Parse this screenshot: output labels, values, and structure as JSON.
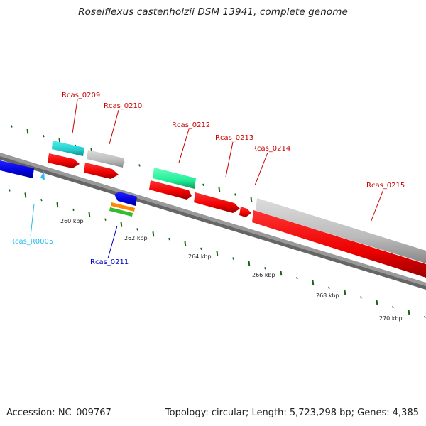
{
  "map": {
    "title": "Roseiflexus castenholzii DSM 13941, complete genome",
    "accession_text": "Accession: NC_009767",
    "topology_text": "Topology: circular; Length: 5,723,298 bp; Genes: 4,385"
  },
  "scale": {
    "ticks": [
      {
        "label": "260 kbp"
      },
      {
        "label": "262 kbp"
      },
      {
        "label": "264 kbp"
      },
      {
        "label": "266 kbp"
      },
      {
        "label": "268 kbp"
      },
      {
        "label": "270 kbp"
      }
    ]
  },
  "features": [
    {
      "id": "Rcas_R0005",
      "label": "Rcas_R0005",
      "color": "#22bbee"
    },
    {
      "id": "Rcas_0209",
      "label": "Rcas_0209",
      "color": "#cc0000"
    },
    {
      "id": "Rcas_0210",
      "label": "Rcas_0210",
      "color": "#cc0000"
    },
    {
      "id": "Rcas_0211",
      "label": "Rcas_0211",
      "color": "#0000cc"
    },
    {
      "id": "Rcas_0212",
      "label": "Rcas_0212",
      "color": "#cc0000"
    },
    {
      "id": "Rcas_0213",
      "label": "Rcas_0213",
      "color": "#cc0000"
    },
    {
      "id": "Rcas_0214",
      "label": "Rcas_0214",
      "color": "#cc0000"
    },
    {
      "id": "Rcas_0215",
      "label": "Rcas_0215",
      "color": "#cc0000"
    }
  ],
  "colors": {
    "cds": "#ff0000",
    "rrna": "#0000ee",
    "trna_marker": "#33bbee",
    "cog_cyan": "#22cccc",
    "cog_grey": "#bbbbbb",
    "cog_mint": "#22ee99",
    "cog_orange": "#ff8800",
    "cog_green": "#33bb33",
    "tick_green": "#116611",
    "backbone": "#888888"
  }
}
